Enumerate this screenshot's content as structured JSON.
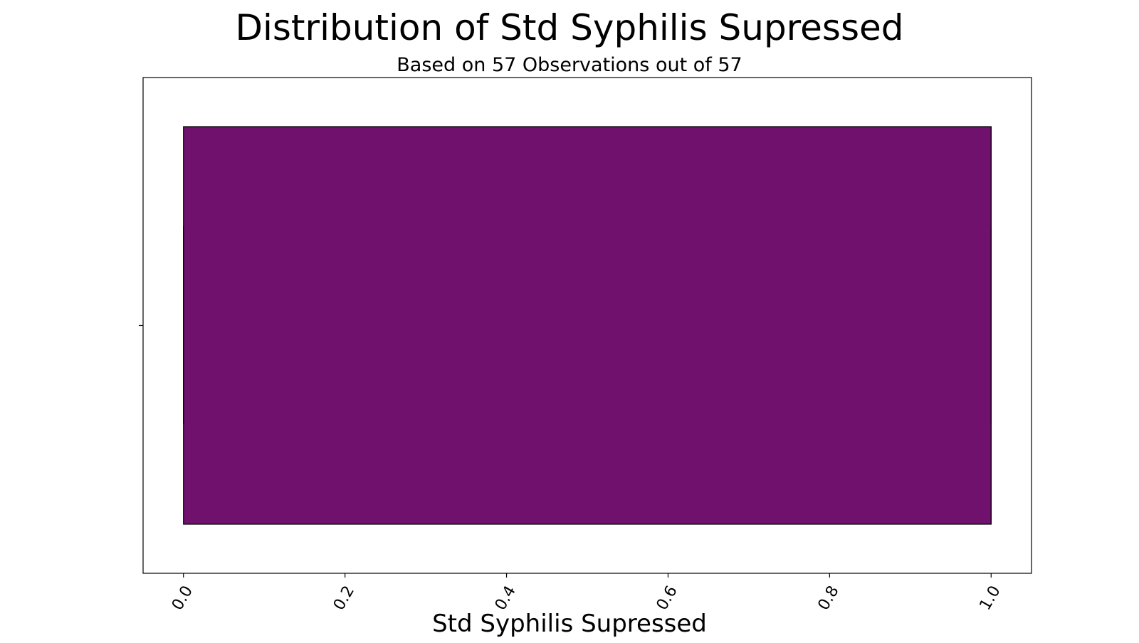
{
  "chart_data": {
    "type": "box",
    "title": "Distribution of Std Syphilis Supressed",
    "subtitle": "Based on 57 Observations out of 57",
    "xlabel": "Std Syphilis Supressed",
    "ylabel": "",
    "xlim": [
      -0.05,
      1.05
    ],
    "x_ticks": [
      0.0,
      0.2,
      0.4,
      0.6,
      0.8,
      1.0
    ],
    "x_tick_labels": [
      "0.0",
      "0.2",
      "0.4",
      "0.6",
      "0.8",
      "1.0"
    ],
    "grid": false,
    "box": {
      "min": 0.0,
      "q1": 0.0,
      "median": 1.0,
      "q3": 1.0,
      "max": 1.0
    },
    "colors": {
      "box_fill": "#70116e",
      "edge": "#000000"
    }
  }
}
